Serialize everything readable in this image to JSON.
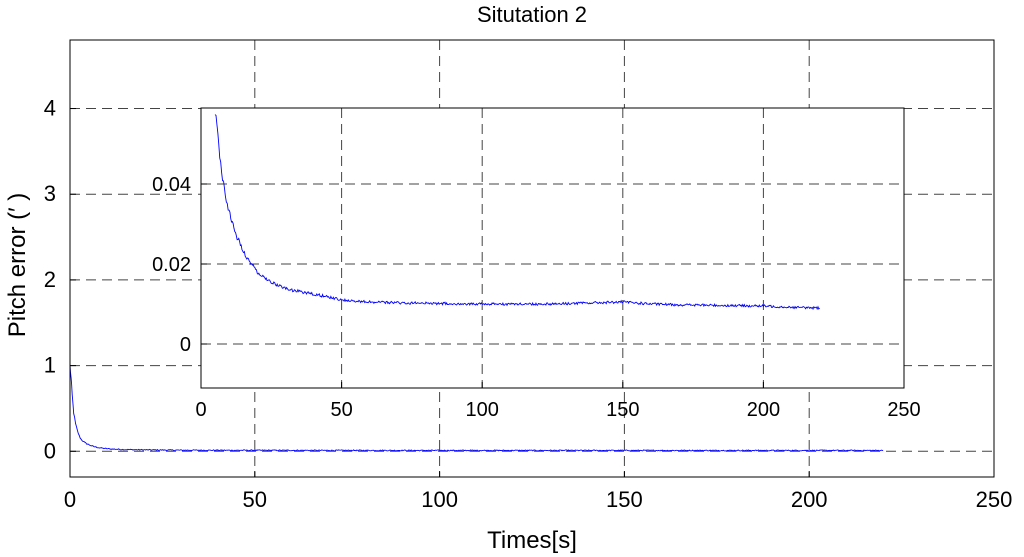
{
  "chart_data": [
    {
      "type": "line",
      "title": "Situtation 2",
      "xlabel": "Times[s]",
      "ylabel": "Pitch error (′ )",
      "xlim": [
        0,
        250
      ],
      "ylim": [
        -0.3,
        4.8
      ],
      "xticks": [
        "0",
        "50",
        "100",
        "150",
        "200",
        "250"
      ],
      "yticks": [
        "0",
        "1",
        "2",
        "3",
        "4"
      ],
      "grid": true,
      "color": "#0000ff",
      "series": [
        {
          "x": [
            0,
            0.3,
            0.6,
            1,
            1.5,
            2,
            2.5,
            3,
            4,
            5,
            6,
            7,
            8,
            10,
            12,
            15,
            20,
            25,
            30,
            40,
            60,
            100,
            150,
            200,
            220
          ],
          "y": [
            1.0,
            0.85,
            0.65,
            0.45,
            0.32,
            0.24,
            0.18,
            0.14,
            0.1,
            0.08,
            0.06,
            0.05,
            0.04,
            0.03,
            0.025,
            0.02,
            0.017,
            0.015,
            0.013,
            0.012,
            0.011,
            0.01,
            0.01,
            0.01,
            0.01
          ]
        }
      ]
    },
    {
      "type": "line",
      "title": "",
      "xlim": [
        0,
        250
      ],
      "ylim": [
        -0.011,
        0.059
      ],
      "xticks": [
        "0",
        "50",
        "100",
        "150",
        "200",
        "250"
      ],
      "yticks": [
        "0",
        "0.02",
        "0.04"
      ],
      "grid": true,
      "color": "#0000ff",
      "series": [
        {
          "x": [
            5,
            6,
            7,
            8,
            9,
            10,
            12,
            14,
            16,
            18,
            20,
            22,
            25,
            28,
            32,
            36,
            40,
            45,
            50,
            60,
            70,
            80,
            90,
            100,
            110,
            120,
            130,
            140,
            150,
            160,
            170,
            180,
            190,
            200,
            210,
            220
          ],
          "y": [
            0.058,
            0.052,
            0.045,
            0.04,
            0.036,
            0.033,
            0.028,
            0.025,
            0.022,
            0.02,
            0.018,
            0.017,
            0.0155,
            0.0145,
            0.0135,
            0.013,
            0.0125,
            0.0118,
            0.011,
            0.0105,
            0.0103,
            0.0102,
            0.0101,
            0.01,
            0.01,
            0.01,
            0.0101,
            0.0103,
            0.0105,
            0.01,
            0.0098,
            0.0097,
            0.0096,
            0.0095,
            0.0092,
            0.009
          ]
        }
      ]
    }
  ]
}
